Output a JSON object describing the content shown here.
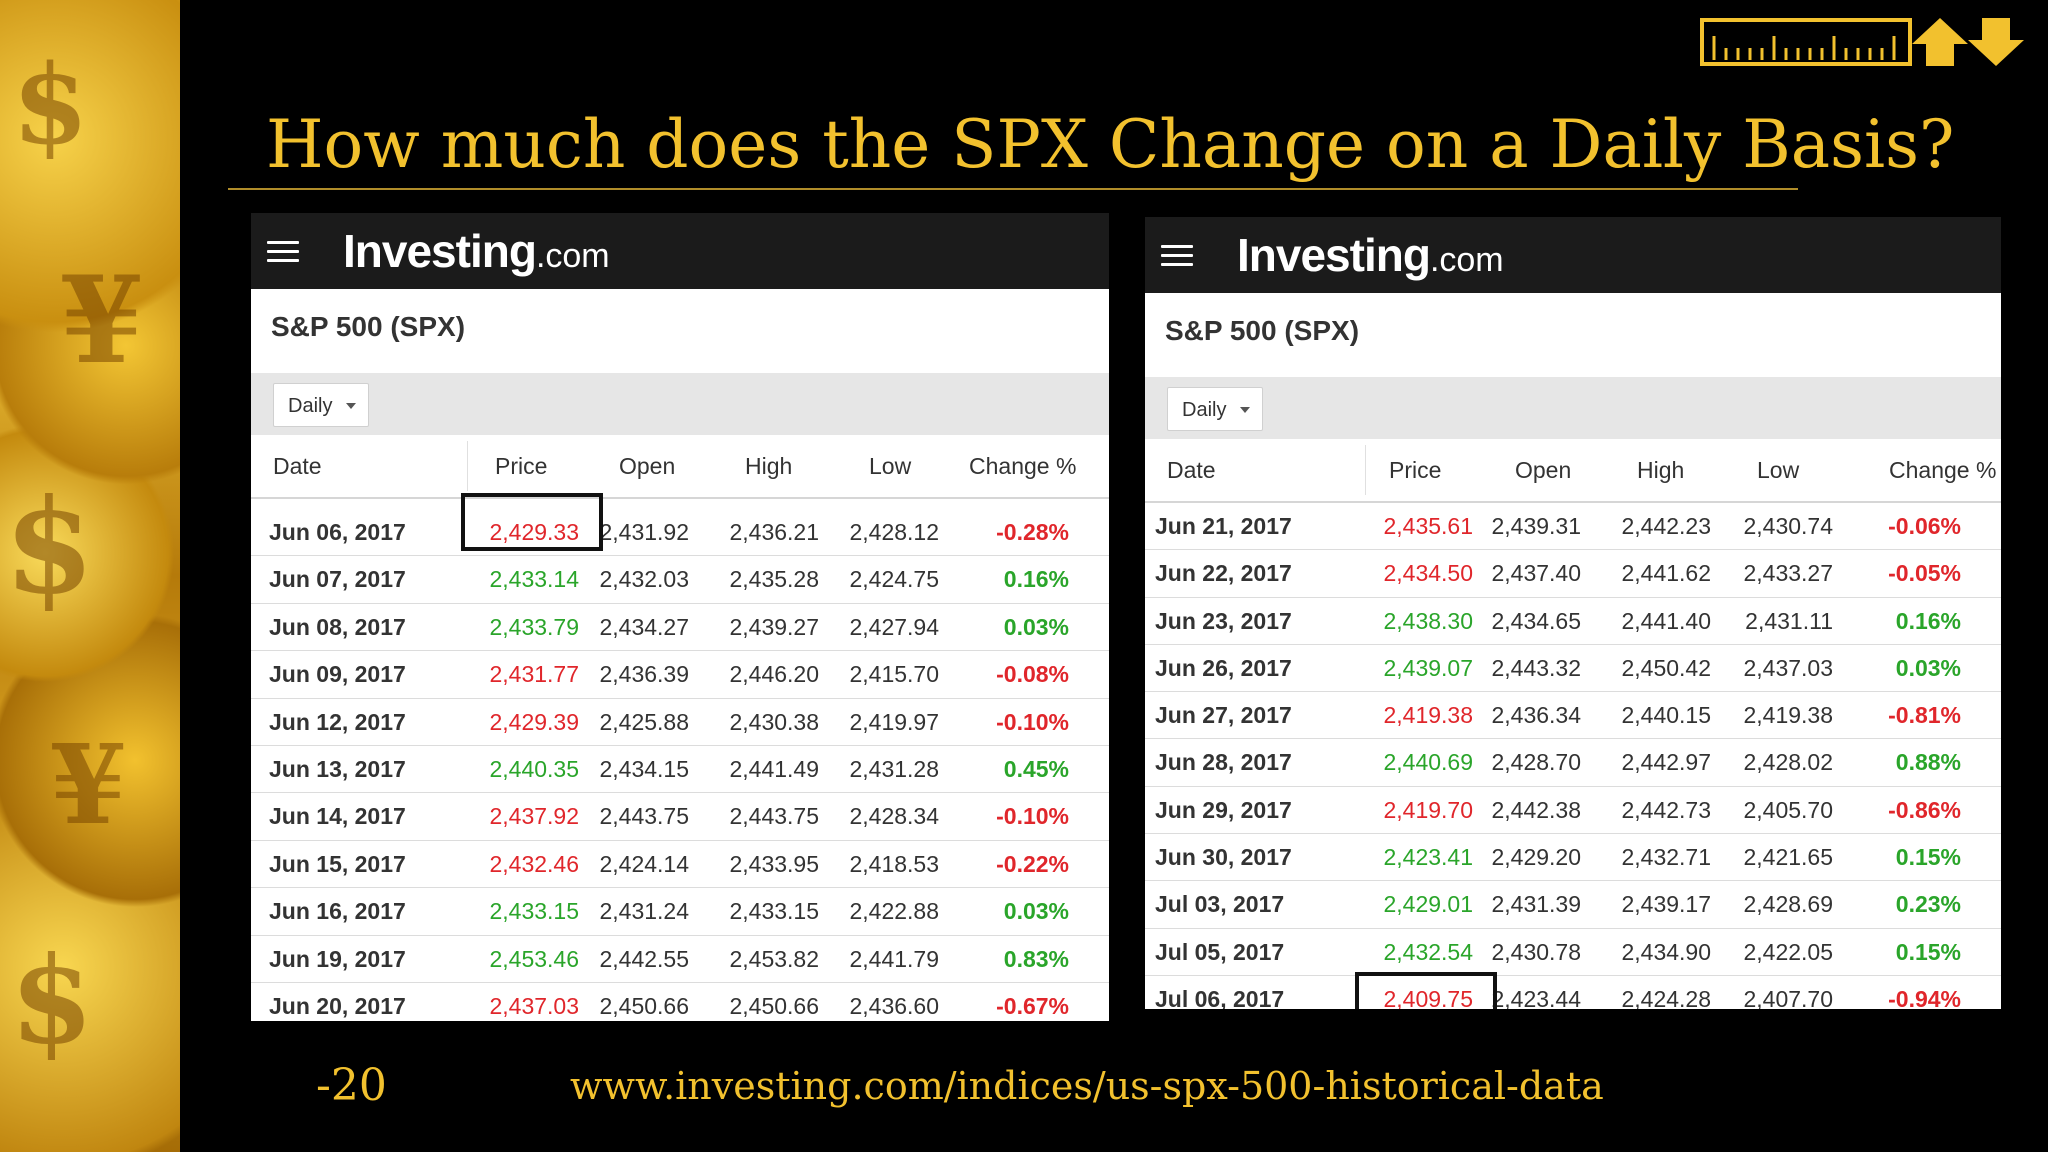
{
  "slide": {
    "title": "How much does the SPX Change on a Daily Basis?",
    "footer_number": "-20",
    "footer_url": "www.investing.com/indices/us-spx-500-historical-data"
  },
  "colors": {
    "title_gold": "#f2c12e",
    "up_green": "#2aa52a",
    "down_red": "#e0262b",
    "topbar": "#1b1b1b"
  },
  "panels": [
    {
      "brand_main": "Investing",
      "brand_suffix": ".com",
      "heading": "S&P 500 (SPX)",
      "interval": "Daily",
      "columns": [
        "Date",
        "Price",
        "Open",
        "High",
        "Low",
        "Change %"
      ],
      "highlighted_row": 0,
      "rows": [
        {
          "date": "Jun 06, 2017",
          "price": "2,429.33",
          "open": "2,431.92",
          "high": "2,436.21",
          "low": "2,428.12",
          "change": "-0.28%",
          "dir": "down"
        },
        {
          "date": "Jun 07, 2017",
          "price": "2,433.14",
          "open": "2,432.03",
          "high": "2,435.28",
          "low": "2,424.75",
          "change": "0.16%",
          "dir": "up"
        },
        {
          "date": "Jun 08, 2017",
          "price": "2,433.79",
          "open": "2,434.27",
          "high": "2,439.27",
          "low": "2,427.94",
          "change": "0.03%",
          "dir": "up"
        },
        {
          "date": "Jun 09, 2017",
          "price": "2,431.77",
          "open": "2,436.39",
          "high": "2,446.20",
          "low": "2,415.70",
          "change": "-0.08%",
          "dir": "down"
        },
        {
          "date": "Jun 12, 2017",
          "price": "2,429.39",
          "open": "2,425.88",
          "high": "2,430.38",
          "low": "2,419.97",
          "change": "-0.10%",
          "dir": "down"
        },
        {
          "date": "Jun 13, 2017",
          "price": "2,440.35",
          "open": "2,434.15",
          "high": "2,441.49",
          "low": "2,431.28",
          "change": "0.45%",
          "dir": "up"
        },
        {
          "date": "Jun 14, 2017",
          "price": "2,437.92",
          "open": "2,443.75",
          "high": "2,443.75",
          "low": "2,428.34",
          "change": "-0.10%",
          "dir": "down"
        },
        {
          "date": "Jun 15, 2017",
          "price": "2,432.46",
          "open": "2,424.14",
          "high": "2,433.95",
          "low": "2,418.53",
          "change": "-0.22%",
          "dir": "down"
        },
        {
          "date": "Jun 16, 2017",
          "price": "2,433.15",
          "open": "2,431.24",
          "high": "2,433.15",
          "low": "2,422.88",
          "change": "0.03%",
          "dir": "up"
        },
        {
          "date": "Jun 19, 2017",
          "price": "2,453.46",
          "open": "2,442.55",
          "high": "2,453.82",
          "low": "2,441.79",
          "change": "0.83%",
          "dir": "up"
        },
        {
          "date": "Jun 20, 2017",
          "price": "2,437.03",
          "open": "2,450.66",
          "high": "2,450.66",
          "low": "2,436.60",
          "change": "-0.67%",
          "dir": "down"
        }
      ]
    },
    {
      "brand_main": "Investing",
      "brand_suffix": ".com",
      "heading": "S&P 500 (SPX)",
      "interval": "Daily",
      "columns": [
        "Date",
        "Price",
        "Open",
        "High",
        "Low",
        "Change %"
      ],
      "highlighted_row": 10,
      "rows": [
        {
          "date": "Jun 21, 2017",
          "price": "2,435.61",
          "open": "2,439.31",
          "high": "2,442.23",
          "low": "2,430.74",
          "change": "-0.06%",
          "dir": "down"
        },
        {
          "date": "Jun 22, 2017",
          "price": "2,434.50",
          "open": "2,437.40",
          "high": "2,441.62",
          "low": "2,433.27",
          "change": "-0.05%",
          "dir": "down"
        },
        {
          "date": "Jun 23, 2017",
          "price": "2,438.30",
          "open": "2,434.65",
          "high": "2,441.40",
          "low": "2,431.11",
          "change": "0.16%",
          "dir": "up"
        },
        {
          "date": "Jun 26, 2017",
          "price": "2,439.07",
          "open": "2,443.32",
          "high": "2,450.42",
          "low": "2,437.03",
          "change": "0.03%",
          "dir": "up"
        },
        {
          "date": "Jun 27, 2017",
          "price": "2,419.38",
          "open": "2,436.34",
          "high": "2,440.15",
          "low": "2,419.38",
          "change": "-0.81%",
          "dir": "down"
        },
        {
          "date": "Jun 28, 2017",
          "price": "2,440.69",
          "open": "2,428.70",
          "high": "2,442.97",
          "low": "2,428.02",
          "change": "0.88%",
          "dir": "up"
        },
        {
          "date": "Jun 29, 2017",
          "price": "2,419.70",
          "open": "2,442.38",
          "high": "2,442.73",
          "low": "2,405.70",
          "change": "-0.86%",
          "dir": "down"
        },
        {
          "date": "Jun 30, 2017",
          "price": "2,423.41",
          "open": "2,429.20",
          "high": "2,432.71",
          "low": "2,421.65",
          "change": "0.15%",
          "dir": "up"
        },
        {
          "date": "Jul 03, 2017",
          "price": "2,429.01",
          "open": "2,431.39",
          "high": "2,439.17",
          "low": "2,428.69",
          "change": "0.23%",
          "dir": "up"
        },
        {
          "date": "Jul 05, 2017",
          "price": "2,432.54",
          "open": "2,430.78",
          "high": "2,434.90",
          "low": "2,422.05",
          "change": "0.15%",
          "dir": "up"
        },
        {
          "date": "Jul 06, 2017",
          "price": "2,409.75",
          "open": "2,423.44",
          "high": "2,424.28",
          "low": "2,407.70",
          "change": "-0.94%",
          "dir": "down"
        }
      ]
    }
  ]
}
